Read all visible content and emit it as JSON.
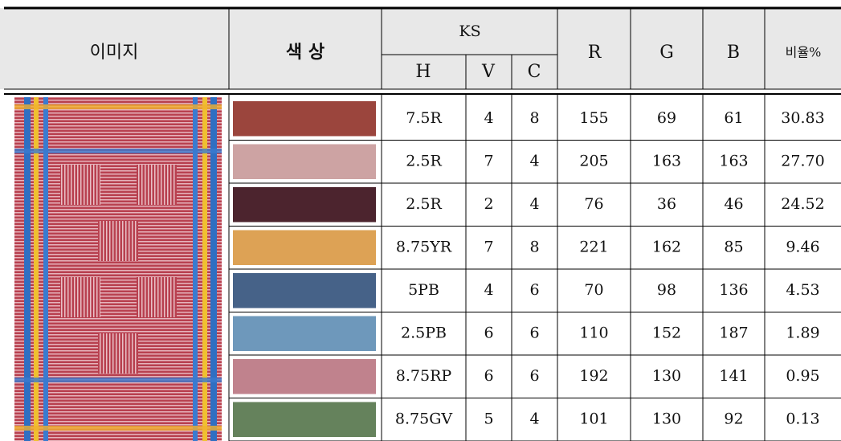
{
  "header": {
    "image": "이미지",
    "color": "색 상",
    "ks": "KS",
    "h": "H",
    "v": "V",
    "c": "C",
    "r": "R",
    "g": "G",
    "b": "B",
    "ratio": "비율%"
  },
  "table": {
    "rows": [
      [
        "7.5R",
        "4",
        "8",
        "155",
        "69",
        "61",
        "30.83"
      ],
      [
        "2.5R",
        "7",
        "4",
        "205",
        "163",
        "163",
        "27.70"
      ],
      [
        "2.5R",
        "2",
        "4",
        "76",
        "36",
        "46",
        "24.52"
      ],
      [
        "8.75YR",
        "7",
        "8",
        "221",
        "162",
        "85",
        "9.46"
      ],
      [
        "5PB",
        "4",
        "6",
        "70",
        "98",
        "136",
        "4.53"
      ],
      [
        "2.5PB",
        "6",
        "6",
        "110",
        "152",
        "187",
        "1.89"
      ],
      [
        "8.75RP",
        "6",
        "6",
        "192",
        "130",
        "141",
        "0.95"
      ],
      [
        "8.75GV",
        "5",
        "4",
        "101",
        "130",
        "92",
        "0.13"
      ]
    ]
  }
}
